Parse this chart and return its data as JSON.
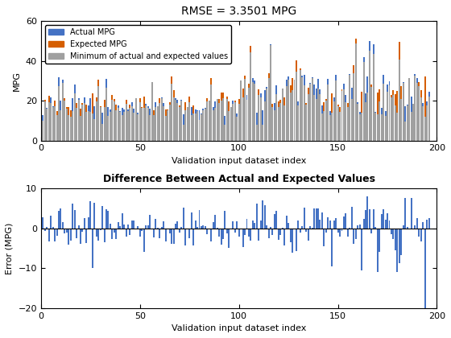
{
  "n": 196,
  "title1": "RMSE = 3.3501 MPG",
  "title2": "Difference Between Actual and Expected Values",
  "xlabel": "Validation input dataset index",
  "ylabel1": "MPG",
  "ylabel2": "Error (MPG)",
  "ylim1": [
    0,
    60
  ],
  "ylim2": [
    -20,
    10
  ],
  "color_actual": "#4472C4",
  "color_expected": "#D55E00",
  "color_min": "#A0A0A0",
  "color_error": "#4472C4",
  "legend_labels": [
    "Actual MPG",
    "Expected MPG",
    "Minimum of actual and expected values"
  ],
  "yticks1": [
    0,
    20,
    40,
    60
  ],
  "yticks2": [
    -20,
    -10,
    0,
    10
  ],
  "xticks1": [
    0,
    50,
    100,
    150,
    200
  ],
  "xticks2": [
    0,
    50,
    100,
    150,
    200
  ]
}
